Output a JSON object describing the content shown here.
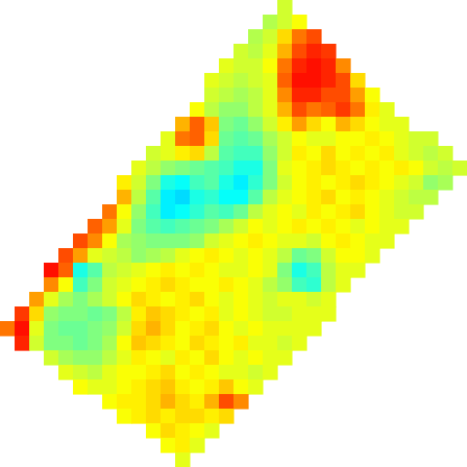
{
  "chart_data": {
    "type": "heatmap",
    "tick_labels": false,
    "grid": false,
    "zlim": [
      0,
      100
    ],
    "cells": [
      [
        null,
        null,
        null,
        null,
        null,
        null,
        null,
        null,
        null,
        null,
        null,
        null,
        null,
        null,
        null,
        null,
        null,
        null,
        null,
        58,
        null,
        null,
        null,
        null,
        null,
        null,
        null,
        null,
        null,
        null,
        null,
        null
      ],
      [
        null,
        null,
        null,
        null,
        null,
        null,
        null,
        null,
        null,
        null,
        null,
        null,
        null,
        null,
        null,
        null,
        null,
        null,
        55,
        58,
        62,
        null,
        null,
        null,
        null,
        null,
        null,
        null,
        null,
        null,
        null,
        null
      ],
      [
        null,
        null,
        null,
        null,
        null,
        null,
        null,
        null,
        null,
        null,
        null,
        null,
        null,
        null,
        null,
        null,
        null,
        55,
        58,
        66,
        76,
        80,
        null,
        null,
        null,
        null,
        null,
        null,
        null,
        null,
        null,
        null
      ],
      [
        null,
        null,
        null,
        null,
        null,
        null,
        null,
        null,
        null,
        null,
        null,
        null,
        null,
        null,
        null,
        null,
        58,
        56,
        60,
        70,
        80,
        84,
        82,
        null,
        null,
        null,
        null,
        null,
        null,
        null,
        null,
        null
      ],
      [
        null,
        null,
        null,
        null,
        null,
        null,
        null,
        null,
        null,
        null,
        null,
        null,
        null,
        null,
        null,
        60,
        58,
        58,
        62,
        76,
        84,
        86,
        84,
        74,
        null,
        null,
        null,
        null,
        null,
        null,
        null,
        null
      ],
      [
        null,
        null,
        null,
        null,
        null,
        null,
        null,
        null,
        null,
        null,
        null,
        null,
        null,
        null,
        60,
        58,
        56,
        58,
        60,
        78,
        86,
        86,
        84,
        80,
        66,
        null,
        null,
        null,
        null,
        null,
        null,
        null
      ],
      [
        null,
        null,
        null,
        null,
        null,
        null,
        null,
        null,
        null,
        null,
        null,
        null,
        null,
        null,
        58,
        56,
        54,
        56,
        60,
        74,
        84,
        84,
        80,
        80,
        72,
        62,
        null,
        null,
        null,
        null,
        null,
        null
      ],
      [
        null,
        null,
        null,
        null,
        null,
        null,
        null,
        null,
        null,
        null,
        null,
        null,
        null,
        62,
        56,
        52,
        52,
        56,
        60,
        70,
        80,
        76,
        78,
        82,
        76,
        64,
        60,
        null,
        null,
        null,
        null,
        null
      ],
      [
        null,
        null,
        null,
        null,
        null,
        null,
        null,
        null,
        null,
        null,
        null,
        null,
        70,
        78,
        68,
        50,
        48,
        52,
        58,
        64,
        72,
        66,
        62,
        70,
        66,
        62,
        60,
        60,
        null,
        null,
        null,
        null
      ],
      [
        null,
        null,
        null,
        null,
        null,
        null,
        null,
        null,
        null,
        null,
        null,
        60,
        76,
        78,
        66,
        48,
        46,
        48,
        54,
        58,
        62,
        60,
        60,
        62,
        62,
        64,
        62,
        60,
        58,
        58,
        null,
        null
      ],
      [
        null,
        null,
        null,
        null,
        null,
        null,
        null,
        null,
        null,
        null,
        58,
        60,
        64,
        66,
        56,
        46,
        44,
        44,
        52,
        58,
        64,
        62,
        66,
        62,
        64,
        62,
        64,
        60,
        58,
        56,
        58,
        null
      ],
      [
        null,
        null,
        null,
        null,
        null,
        null,
        null,
        null,
        null,
        60,
        56,
        52,
        50,
        48,
        46,
        44,
        40,
        40,
        50,
        60,
        62,
        64,
        66,
        64,
        62,
        64,
        62,
        64,
        62,
        58,
        56,
        58
      ],
      [
        null,
        null,
        null,
        null,
        null,
        null,
        null,
        null,
        64,
        58,
        50,
        40,
        38,
        44,
        46,
        40,
        36,
        42,
        50,
        58,
        62,
        64,
        62,
        64,
        66,
        64,
        62,
        60,
        58,
        52,
        54,
        null
      ],
      [
        null,
        null,
        null,
        null,
        null,
        null,
        null,
        null,
        70,
        56,
        46,
        36,
        34,
        40,
        42,
        38,
        38,
        46,
        56,
        60,
        62,
        64,
        66,
        62,
        64,
        62,
        60,
        58,
        56,
        56,
        null,
        null
      ],
      [
        null,
        null,
        null,
        null,
        null,
        null,
        null,
        76,
        62,
        52,
        44,
        36,
        38,
        42,
        46,
        44,
        48,
        56,
        60,
        62,
        60,
        64,
        62,
        64,
        66,
        62,
        60,
        58,
        58,
        null,
        null,
        null
      ],
      [
        null,
        null,
        null,
        null,
        null,
        null,
        78,
        72,
        60,
        50,
        46,
        44,
        46,
        48,
        50,
        54,
        58,
        62,
        60,
        62,
        64,
        62,
        64,
        62,
        60,
        62,
        60,
        60,
        null,
        null,
        null,
        null
      ],
      [
        null,
        null,
        null,
        null,
        null,
        80,
        74,
        62,
        54,
        52,
        50,
        50,
        50,
        52,
        58,
        60,
        62,
        64,
        62,
        60,
        60,
        58,
        62,
        64,
        62,
        60,
        60,
        null,
        null,
        null,
        null,
        null
      ],
      [
        null,
        null,
        null,
        null,
        80,
        72,
        60,
        58,
        56,
        52,
        54,
        56,
        60,
        62,
        64,
        62,
        60,
        62,
        60,
        56,
        48,
        50,
        58,
        62,
        62,
        60,
        null,
        null,
        null,
        null,
        null,
        null
      ],
      [
        null,
        null,
        null,
        86,
        78,
        40,
        46,
        56,
        58,
        60,
        62,
        64,
        62,
        64,
        62,
        60,
        60,
        62,
        60,
        50,
        40,
        44,
        56,
        60,
        60,
        null,
        null,
        null,
        null,
        null,
        null,
        null
      ],
      [
        null,
        null,
        null,
        74,
        62,
        44,
        50,
        58,
        60,
        62,
        64,
        66,
        64,
        62,
        62,
        64,
        62,
        60,
        56,
        52,
        44,
        42,
        56,
        60,
        null,
        null,
        null,
        null,
        null,
        null,
        null,
        null
      ],
      [
        null,
        null,
        72,
        60,
        54,
        50,
        54,
        58,
        62,
        66,
        64,
        62,
        64,
        66,
        62,
        60,
        62,
        60,
        58,
        60,
        60,
        58,
        60,
        null,
        null,
        null,
        null,
        null,
        null,
        null,
        null,
        null
      ],
      [
        null,
        82,
        66,
        52,
        50,
        50,
        48,
        50,
        56,
        64,
        68,
        66,
        64,
        62,
        64,
        60,
        62,
        60,
        58,
        58,
        60,
        60,
        60,
        null,
        null,
        null,
        null,
        null,
        null,
        null,
        null,
        null
      ],
      [
        76,
        86,
        60,
        50,
        48,
        48,
        50,
        52,
        58,
        66,
        70,
        66,
        62,
        64,
        66,
        62,
        60,
        62,
        60,
        60,
        60,
        60,
        null,
        null,
        null,
        null,
        null,
        null,
        null,
        null,
        null,
        null
      ],
      [
        null,
        84,
        58,
        50,
        50,
        48,
        50,
        54,
        62,
        68,
        66,
        64,
        62,
        66,
        64,
        62,
        64,
        60,
        60,
        58,
        60,
        null,
        null,
        null,
        null,
        null,
        null,
        null,
        null,
        null,
        null,
        null
      ],
      [
        null,
        null,
        null,
        58,
        54,
        52,
        52,
        56,
        60,
        64,
        62,
        60,
        64,
        62,
        66,
        62,
        60,
        62,
        60,
        60,
        null,
        null,
        null,
        null,
        null,
        null,
        null,
        null,
        null,
        null,
        null,
        null
      ],
      [
        null,
        null,
        null,
        null,
        60,
        58,
        56,
        60,
        62,
        62,
        64,
        66,
        62,
        64,
        62,
        60,
        60,
        58,
        60,
        null,
        null,
        null,
        null,
        null,
        null,
        null,
        null,
        null,
        null,
        null,
        null,
        null
      ],
      [
        null,
        null,
        null,
        null,
        null,
        62,
        60,
        60,
        62,
        64,
        66,
        68,
        64,
        62,
        64,
        68,
        62,
        60,
        null,
        null,
        null,
        null,
        null,
        null,
        null,
        null,
        null,
        null,
        null,
        null,
        null,
        null
      ],
      [
        null,
        null,
        null,
        null,
        null,
        null,
        null,
        62,
        64,
        64,
        66,
        70,
        66,
        64,
        70,
        80,
        74,
        null,
        null,
        null,
        null,
        null,
        null,
        null,
        null,
        null,
        null,
        null,
        null,
        null,
        null,
        null
      ],
      [
        null,
        null,
        null,
        null,
        null,
        null,
        null,
        null,
        62,
        64,
        66,
        64,
        66,
        66,
        64,
        66,
        null,
        null,
        null,
        null,
        null,
        null,
        null,
        null,
        null,
        null,
        null,
        null,
        null,
        null,
        null,
        null
      ],
      [
        null,
        null,
        null,
        null,
        null,
        null,
        null,
        null,
        null,
        null,
        62,
        66,
        64,
        62,
        60,
        null,
        null,
        null,
        null,
        null,
        null,
        null,
        null,
        null,
        null,
        null,
        null,
        null,
        null,
        null,
        null,
        null
      ],
      [
        null,
        null,
        null,
        null,
        null,
        null,
        null,
        null,
        null,
        null,
        null,
        62,
        64,
        60,
        null,
        null,
        null,
        null,
        null,
        null,
        null,
        null,
        null,
        null,
        null,
        null,
        null,
        null,
        null,
        null,
        null,
        null
      ],
      [
        null,
        null,
        null,
        null,
        null,
        null,
        null,
        null,
        null,
        null,
        null,
        null,
        60,
        null,
        null,
        null,
        null,
        null,
        null,
        null,
        null,
        null,
        null,
        null,
        null,
        null,
        null,
        null,
        null,
        null,
        null,
        null
      ]
    ]
  }
}
